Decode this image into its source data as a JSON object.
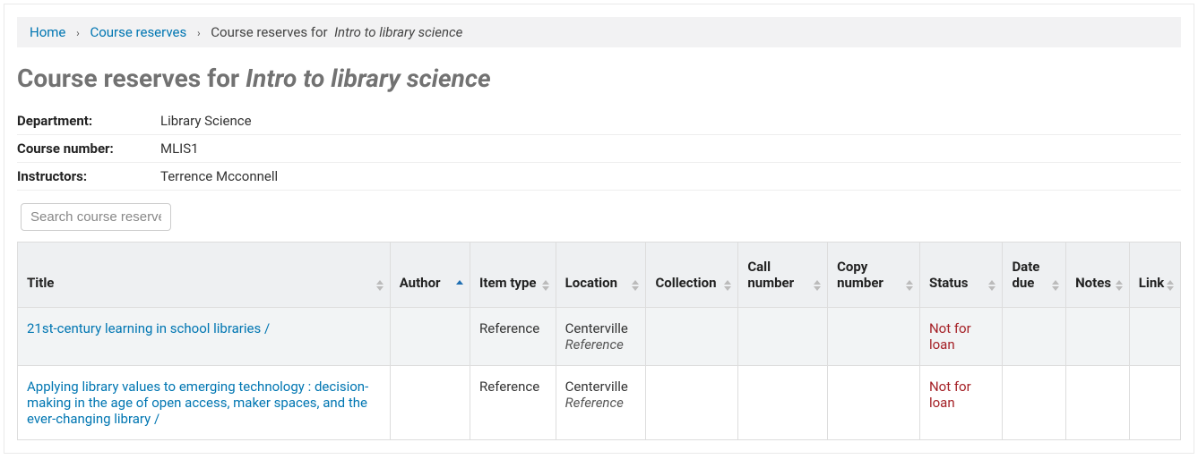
{
  "breadcrumb": {
    "home": "Home",
    "reserves": "Course reserves",
    "current_prefix": "Course reserves for",
    "current_course": "Intro to library science"
  },
  "page_title": {
    "prefix": "Course reserves for",
    "course": "Intro to library science"
  },
  "info": {
    "department_label": "Department:",
    "department_value": "Library Science",
    "course_number_label": "Course number:",
    "course_number_value": "MLIS1",
    "instructors_label": "Instructors:",
    "instructors_value": "Terrence Mcconnell"
  },
  "search": {
    "placeholder": "Search course reserves"
  },
  "columns": {
    "title": "Title",
    "author": "Author",
    "itemtype": "Item type",
    "location": "Location",
    "collection": "Collection",
    "call": "Call number",
    "copy": "Copy number",
    "status": "Status",
    "date": "Date due",
    "notes": "Notes",
    "link": "Link"
  },
  "sort": {
    "column": "author",
    "direction": "asc"
  },
  "rows": [
    {
      "title": "21st-century learning in school libraries /",
      "author": "",
      "itemtype": "Reference",
      "location_primary": "Centerville",
      "location_secondary": "Reference",
      "collection": "",
      "call": "",
      "copy": "",
      "status": "Not for loan",
      "date": "",
      "notes": "",
      "link": ""
    },
    {
      "title": "Applying library values to emerging technology : decision-making in the age of open access, maker spaces, and the ever-changing library /",
      "author": "",
      "itemtype": "Reference",
      "location_primary": "Centerville",
      "location_secondary": "Reference",
      "collection": "",
      "call": "",
      "copy": "",
      "status": "Not for loan",
      "date": "",
      "notes": "",
      "link": ""
    }
  ],
  "colors": {
    "link": "#0076b2",
    "heading": "#727272",
    "status_warn": "#a52127",
    "breadcrumb_bg": "#f2f2f3",
    "thead_bg": "#eef0f2",
    "row_alt_bg": "#f2f4f5"
  }
}
